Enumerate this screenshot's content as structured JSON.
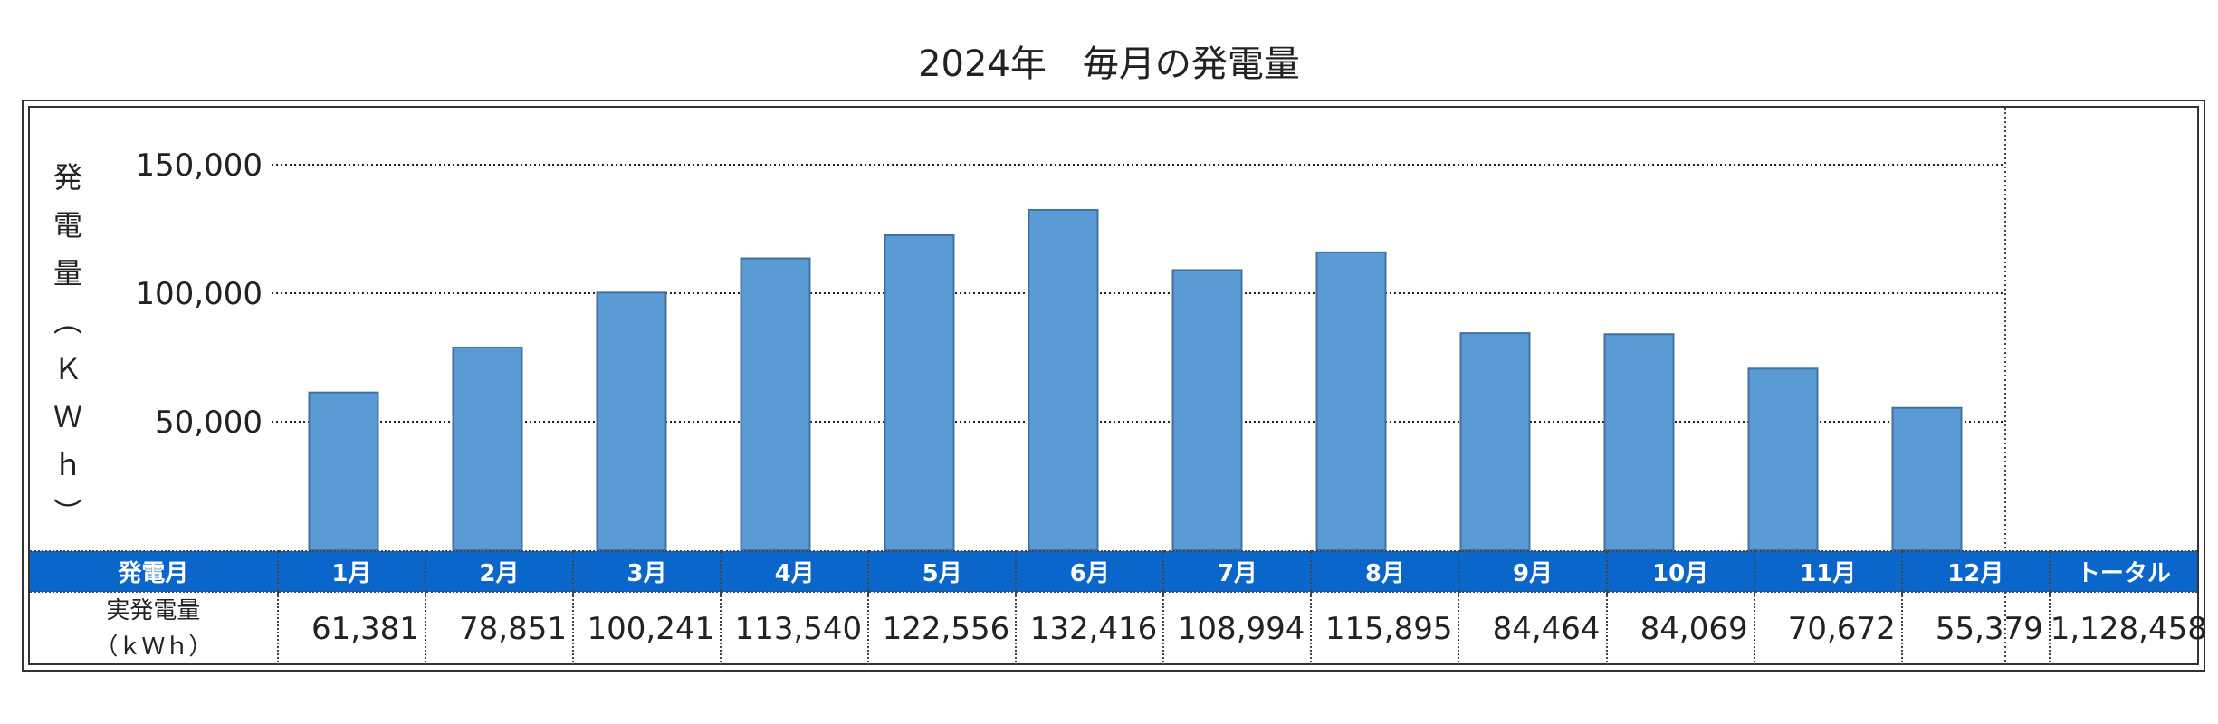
{
  "title": "2024年　毎月の発電量",
  "chart_data": {
    "type": "bar",
    "title": "2024年　毎月の発電量",
    "ylabel_chars": [
      "発",
      "電",
      "量",
      "︵",
      "Ｋ",
      "Ｗ",
      "ｈ",
      "︶"
    ],
    "categories": [
      "1月",
      "2月",
      "3月",
      "4月",
      "5月",
      "6月",
      "7月",
      "8月",
      "9月",
      "10月",
      "11月",
      "12月"
    ],
    "values": [
      61381,
      78851,
      100241,
      113540,
      122556,
      132416,
      108994,
      115895,
      84464,
      84069,
      70672,
      55379
    ],
    "ylim": [
      0,
      150000
    ],
    "yticks": [
      50000,
      100000,
      150000
    ],
    "ytick_labels": [
      "50,000",
      "100,000",
      "150,000"
    ],
    "grid": true,
    "bar_color": "#5b9bd5",
    "bar_edge_color": "#41719c"
  },
  "table": {
    "header_label": "発電月",
    "row_label_lines": [
      "実発電量",
      "（ｋＷｈ）"
    ],
    "value_labels": [
      "61,381",
      "78,851",
      "100,241",
      "113,540",
      "122,556",
      "132,416",
      "108,994",
      "115,895",
      "84,464",
      "84,069",
      "70,672",
      "55,379"
    ],
    "total_header": "トータル",
    "total_value": "1,128,458",
    "header_color": "#0b66cc"
  }
}
